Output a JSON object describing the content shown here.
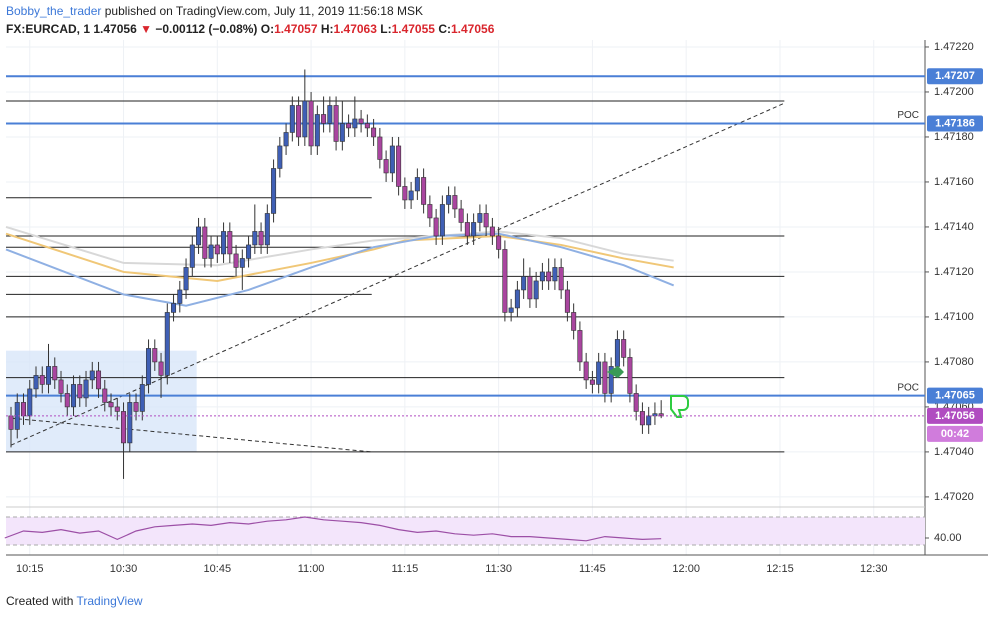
{
  "header": {
    "author": "Bobby_the_trader",
    "published": "published on TradingView.com, July 11, 2019 11:56:18 MSK",
    "symbol": "FX:EURCAD, 1",
    "price": "1.47056",
    "arrow": "▼",
    "change": "−0.00112 (−0.08%)",
    "ohlc": [
      {
        "k": "O:",
        "v": "1.47057"
      },
      {
        "k": "H:",
        "v": "1.47063"
      },
      {
        "k": "L:",
        "v": "1.47055"
      },
      {
        "k": "C:",
        "v": "1.47056"
      }
    ]
  },
  "footer": {
    "created": "Created with",
    "brand": "TradingView"
  },
  "chart_data": {
    "type": "candlestick",
    "up_color": "#3f5fb5",
    "down_color": "#a9459f",
    "grid": true,
    "xlim": [
      611.2,
      758.2
    ],
    "xticks": [
      {
        "value": 615,
        "label": "10:15"
      },
      {
        "value": 630,
        "label": "10:30"
      },
      {
        "value": 645,
        "label": "10:45"
      },
      {
        "value": 660,
        "label": "11:00"
      },
      {
        "value": 675,
        "label": "11:15"
      },
      {
        "value": 690,
        "label": "11:30"
      },
      {
        "value": 705,
        "label": "11:45"
      },
      {
        "value": 720,
        "label": "12:00"
      },
      {
        "value": 735,
        "label": "12:15"
      },
      {
        "value": 750,
        "label": "12:30"
      }
    ],
    "ylim": [
      1.470164,
      1.472231
    ],
    "yticks": [
      {
        "value": 1.4722,
        "label": "1.47220"
      },
      {
        "value": 1.472,
        "label": "1.47200"
      },
      {
        "value": 1.4718,
        "label": "1.47180"
      },
      {
        "value": 1.4716,
        "label": "1.47160"
      },
      {
        "value": 1.4714,
        "label": "1.47140"
      },
      {
        "value": 1.4712,
        "label": "1.47120"
      },
      {
        "value": 1.471,
        "label": "1.47100"
      },
      {
        "value": 1.4708,
        "label": "1.47080"
      },
      {
        "value": 1.4706,
        "label": "1.47060"
      },
      {
        "value": 1.4704,
        "label": "1.47040"
      },
      {
        "value": 1.4702,
        "label": "1.47020"
      }
    ],
    "x": [
      612,
      613,
      614,
      615,
      616,
      617,
      618,
      619,
      620,
      621,
      622,
      623,
      624,
      625,
      626,
      627,
      628,
      629,
      630,
      631,
      632,
      633,
      634,
      635,
      636,
      637,
      638,
      639,
      640,
      641,
      642,
      643,
      644,
      645,
      646,
      647,
      648,
      649,
      650,
      651,
      652,
      653,
      654,
      655,
      656,
      657,
      658,
      659,
      660,
      661,
      662,
      663,
      664,
      665,
      666,
      667,
      668,
      669,
      670,
      671,
      672,
      673,
      674,
      675,
      676,
      677,
      678,
      679,
      680,
      681,
      682,
      683,
      684,
      685,
      686,
      687,
      688,
      689,
      690,
      691,
      692,
      693,
      694,
      695,
      696,
      697,
      698,
      699,
      700,
      701,
      702,
      703,
      704,
      705,
      706,
      707,
      708,
      709,
      710,
      711,
      712,
      713,
      714,
      715,
      716
    ],
    "open": [
      1.47056,
      1.4705,
      1.47062,
      1.47056,
      1.47068,
      1.47074,
      1.4707,
      1.47078,
      1.47072,
      1.47066,
      1.4706,
      1.4707,
      1.47064,
      1.47072,
      1.47076,
      1.47068,
      1.47062,
      1.4706,
      1.47058,
      1.47044,
      1.47062,
      1.47058,
      1.4707,
      1.47086,
      1.4708,
      1.47074,
      1.47102,
      1.47106,
      1.47112,
      1.47122,
      1.47132,
      1.4714,
      1.47126,
      1.47132,
      1.47128,
      1.47138,
      1.47128,
      1.47122,
      1.47126,
      1.47132,
      1.47138,
      1.47132,
      1.47146,
      1.47166,
      1.47176,
      1.47182,
      1.47194,
      1.4718,
      1.47196,
      1.47176,
      1.4719,
      1.47186,
      1.47194,
      1.47178,
      1.47186,
      1.47184,
      1.47188,
      1.47186,
      1.47184,
      1.4718,
      1.4717,
      1.47164,
      1.47176,
      1.47158,
      1.47152,
      1.47156,
      1.47162,
      1.4715,
      1.47144,
      1.47136,
      1.4715,
      1.47154,
      1.47148,
      1.47142,
      1.47136,
      1.47142,
      1.47146,
      1.4714,
      1.47136,
      1.4713,
      1.47102,
      1.47104,
      1.47112,
      1.47118,
      1.47108,
      1.47116,
      1.4712,
      1.47116,
      1.47122,
      1.47112,
      1.47102,
      1.47094,
      1.4708,
      1.47072,
      1.4707,
      1.4708,
      1.47066,
      1.47078,
      1.4709,
      1.47082,
      1.47066,
      1.47058,
      1.47052,
      1.47056,
      1.47057
    ],
    "high": [
      1.4706,
      1.47066,
      1.47066,
      1.47072,
      1.47078,
      1.47078,
      1.47088,
      1.47082,
      1.47076,
      1.4707,
      1.47074,
      1.47074,
      1.47076,
      1.4708,
      1.4708,
      1.47072,
      1.47066,
      1.47064,
      1.47062,
      1.47066,
      1.47066,
      1.47074,
      1.4709,
      1.4709,
      1.47084,
      1.47106,
      1.4711,
      1.47116,
      1.47126,
      1.47136,
      1.47144,
      1.47144,
      1.47136,
      1.47136,
      1.47142,
      1.47142,
      1.47132,
      1.4713,
      1.47136,
      1.4715,
      1.47142,
      1.4715,
      1.4717,
      1.4718,
      1.47186,
      1.47198,
      1.47198,
      1.4721,
      1.472,
      1.47194,
      1.47198,
      1.47198,
      1.47198,
      1.47196,
      1.4719,
      1.47198,
      1.47192,
      1.4719,
      1.47188,
      1.47184,
      1.47174,
      1.4718,
      1.4718,
      1.47162,
      1.4716,
      1.47166,
      1.47166,
      1.47154,
      1.47148,
      1.47154,
      1.47158,
      1.47158,
      1.47152,
      1.47146,
      1.47146,
      1.4715,
      1.4715,
      1.47144,
      1.4714,
      1.47134,
      1.47108,
      1.47116,
      1.47126,
      1.47122,
      1.4712,
      1.47124,
      1.47126,
      1.47126,
      1.47126,
      1.47116,
      1.47106,
      1.47098,
      1.47084,
      1.47076,
      1.47084,
      1.47084,
      1.47082,
      1.47094,
      1.47094,
      1.47086,
      1.4707,
      1.47062,
      1.4706,
      1.47062,
      1.47063
    ],
    "low": [
      1.47042,
      1.47046,
      1.47052,
      1.47052,
      1.47064,
      1.47066,
      1.47066,
      1.47068,
      1.47062,
      1.47056,
      1.47056,
      1.4706,
      1.4706,
      1.47068,
      1.47064,
      1.47058,
      1.47056,
      1.47054,
      1.47028,
      1.4704,
      1.47054,
      1.47054,
      1.47066,
      1.47076,
      1.47064,
      1.4707,
      1.47098,
      1.47102,
      1.47108,
      1.47118,
      1.47128,
      1.47122,
      1.47122,
      1.47124,
      1.47124,
      1.47124,
      1.47118,
      1.47112,
      1.47122,
      1.47128,
      1.47128,
      1.47128,
      1.47142,
      1.47162,
      1.47172,
      1.47178,
      1.47176,
      1.47176,
      1.47172,
      1.47172,
      1.47182,
      1.47182,
      1.47174,
      1.47174,
      1.4718,
      1.4718,
      1.47182,
      1.4718,
      1.47176,
      1.47166,
      1.4716,
      1.4716,
      1.47154,
      1.47148,
      1.47148,
      1.47152,
      1.47146,
      1.4714,
      1.47132,
      1.47132,
      1.47146,
      1.47144,
      1.47138,
      1.47132,
      1.47132,
      1.47138,
      1.47136,
      1.47132,
      1.47126,
      1.47098,
      1.47098,
      1.471,
      1.47108,
      1.47104,
      1.47104,
      1.47112,
      1.47112,
      1.47112,
      1.47108,
      1.47098,
      1.4709,
      1.47076,
      1.47068,
      1.47066,
      1.47066,
      1.47062,
      1.47062,
      1.47074,
      1.47078,
      1.47062,
      1.47054,
      1.47048,
      1.47048,
      1.47052,
      1.47055
    ],
    "close": [
      1.4705,
      1.47062,
      1.47056,
      1.47068,
      1.47074,
      1.4707,
      1.47078,
      1.47072,
      1.47066,
      1.4706,
      1.4707,
      1.47064,
      1.47072,
      1.47076,
      1.47068,
      1.47062,
      1.4706,
      1.47058,
      1.47044,
      1.47062,
      1.47058,
      1.4707,
      1.47086,
      1.4708,
      1.47074,
      1.47102,
      1.47106,
      1.47112,
      1.47122,
      1.47132,
      1.4714,
      1.47126,
      1.47132,
      1.47128,
      1.47138,
      1.47128,
      1.47122,
      1.47126,
      1.47132,
      1.47138,
      1.47132,
      1.47146,
      1.47166,
      1.47176,
      1.47182,
      1.47194,
      1.4718,
      1.47196,
      1.47176,
      1.4719,
      1.47186,
      1.47194,
      1.47178,
      1.47186,
      1.47184,
      1.47188,
      1.47186,
      1.47184,
      1.4718,
      1.4717,
      1.47164,
      1.47176,
      1.47158,
      1.47152,
      1.47156,
      1.47162,
      1.4715,
      1.47144,
      1.47136,
      1.4715,
      1.47154,
      1.47148,
      1.47142,
      1.47136,
      1.47142,
      1.47146,
      1.4714,
      1.47136,
      1.4713,
      1.47102,
      1.47104,
      1.47112,
      1.47118,
      1.47108,
      1.47116,
      1.4712,
      1.47116,
      1.47122,
      1.47112,
      1.47102,
      1.47094,
      1.4708,
      1.47072,
      1.4707,
      1.4708,
      1.47066,
      1.47078,
      1.4709,
      1.47082,
      1.47066,
      1.47058,
      1.47052,
      1.47056,
      1.47057,
      1.47056
    ],
    "moving_averages": [
      {
        "color": "#d8d8d8",
        "x": [
          611.2,
          630,
          645,
          660,
          670,
          680,
          690,
          700,
          710,
          718
        ],
        "values": [
          1.4714,
          1.47124,
          1.47123,
          1.4713,
          1.47134,
          1.47136,
          1.47138,
          1.47135,
          1.47128,
          1.47125
        ]
      },
      {
        "color": "#f0c777",
        "x": [
          611.2,
          630,
          645,
          660,
          670,
          675,
          690,
          700,
          710,
          718
        ],
        "values": [
          1.47137,
          1.4712,
          1.47116,
          1.47124,
          1.4713,
          1.47134,
          1.47136,
          1.47132,
          1.47126,
          1.47122
        ]
      },
      {
        "color": "#8fb0e3",
        "x": [
          611.2,
          630,
          640,
          650,
          660,
          670,
          680,
          690,
          700,
          710,
          718
        ],
        "values": [
          1.4713,
          1.4711,
          1.47105,
          1.47112,
          1.47122,
          1.47131,
          1.47136,
          1.47137,
          1.47131,
          1.47123,
          1.47114
        ]
      }
    ],
    "levels": [
      {
        "price": 1.47196,
        "x": [
          611.2,
          735.7
        ]
      },
      {
        "price": 1.47153,
        "x": [
          611.2,
          669.7
        ]
      },
      {
        "price": 1.47136,
        "x": [
          611.2,
          735.7
        ]
      },
      {
        "price": 1.47131,
        "x": [
          611.2,
          669.7
        ]
      },
      {
        "price": 1.47118,
        "x": [
          611.2,
          735.7
        ]
      },
      {
        "price": 1.4711,
        "x": [
          611.2,
          669.7
        ]
      },
      {
        "price": 1.471,
        "x": [
          611.2,
          735.7
        ]
      },
      {
        "price": 1.47073,
        "x": [
          611.2,
          735.7
        ]
      },
      {
        "price": 1.4704,
        "x": [
          611.2,
          735.7
        ]
      }
    ],
    "blue_levels": [
      {
        "price": 1.47207
      },
      {
        "price": 1.47186,
        "note": "POC"
      },
      {
        "price": 1.47065,
        "note": "POC"
      }
    ],
    "trend_lines": [
      {
        "x": [
          612,
          735.7
        ],
        "y": [
          1.47043,
          1.47195
        ]
      },
      {
        "x": [
          612,
          669.7
        ],
        "y": [
          1.47055,
          1.4704
        ]
      }
    ],
    "range_box": {
      "x": [
        611.2,
        641.7
      ],
      "y": [
        1.4704,
        1.47085
      ]
    },
    "last_price": 1.47056,
    "countdown": "00:42",
    "rsi": {
      "color": "#9c4fa6",
      "ylim": [
        20,
        80
      ],
      "levels": [
        30,
        70
      ],
      "yticks": [
        {
          "value": 40,
          "label": "40.00"
        }
      ],
      "x": [
        611,
        614,
        617,
        620,
        623,
        626,
        629,
        632,
        635,
        638,
        641,
        644,
        647,
        650,
        653,
        656,
        659,
        662,
        665,
        668,
        671,
        674,
        677,
        680,
        683,
        686,
        689,
        692,
        695,
        698,
        701,
        704,
        707,
        710,
        713,
        716
      ],
      "values": [
        40,
        50,
        48,
        52,
        47,
        50,
        38,
        50,
        56,
        58,
        60,
        58,
        62,
        60,
        64,
        66,
        70,
        66,
        64,
        62,
        58,
        52,
        48,
        50,
        46,
        44,
        46,
        42,
        42,
        40,
        38,
        36,
        42,
        40,
        38,
        39
      ]
    }
  }
}
